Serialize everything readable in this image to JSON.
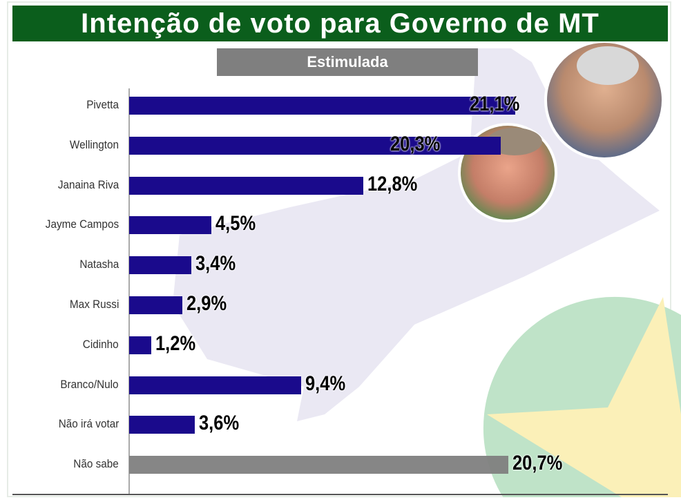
{
  "chart_data": {
    "type": "bar",
    "orientation": "horizontal",
    "title": "Intenção de voto para Governo de MT",
    "subtitle": "Estimulada",
    "categories": [
      "Pivetta",
      "Wellington",
      "Janaina Riva",
      "Jayme Campos",
      "Natasha",
      "Max Russi",
      "Cidinho",
      "Branco/Nulo",
      "Não irá votar",
      "Não sabe"
    ],
    "values": [
      21.1,
      20.3,
      12.8,
      4.5,
      3.4,
      2.9,
      1.2,
      9.4,
      3.6,
      20.7
    ],
    "data_labels": [
      "21,1%",
      "20,3%",
      "12,8%",
      "4,5%",
      "3,4%",
      "2,9%",
      "1,2%",
      "9,4%",
      "3,6%",
      "20,7%"
    ],
    "unit": "%",
    "xlim": [
      0,
      30
    ],
    "grid": false,
    "colors": {
      "bar": "#1a0a8c",
      "undecided_bar": "#7f7f7f",
      "title_bg": "#0b5e1c",
      "subtitle_bg": "#7f7f7f"
    }
  }
}
